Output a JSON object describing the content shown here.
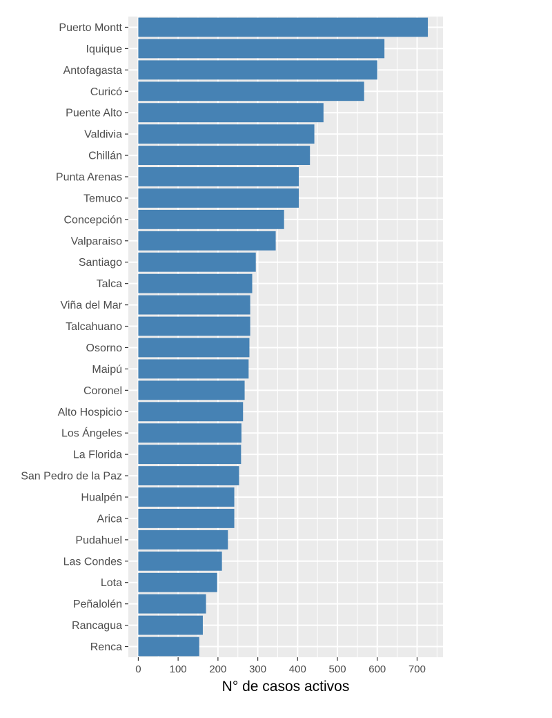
{
  "chart_data": {
    "type": "bar",
    "orientation": "horizontal",
    "categories": [
      "Puerto Montt",
      "Iquique",
      "Antofagasta",
      "Curicó",
      "Puente Alto",
      "Valdivia",
      "Chillán",
      "Punta Arenas",
      "Temuco",
      "Concepción",
      "Valparaiso",
      "Santiago",
      "Talca",
      "Viña del Mar",
      "Talcahuano",
      "Osorno",
      "Maipú",
      "Coronel",
      "Alto Hospicio",
      "Los Ángeles",
      "La Florida",
      "San Pedro de la Paz",
      "Hualpén",
      "Arica",
      "Pudahuel",
      "Las Condes",
      "Lota",
      "Peñalolén",
      "Rancagua",
      "Renca"
    ],
    "values": [
      727,
      618,
      600,
      567,
      465,
      442,
      431,
      403,
      403,
      366,
      345,
      295,
      286,
      281,
      281,
      279,
      277,
      267,
      263,
      259,
      258,
      253,
      241,
      241,
      225,
      210,
      198,
      170,
      162,
      153
    ],
    "xlabel": "N° de casos activos",
    "ylabel": "",
    "title": "",
    "xlim": [
      -25,
      765
    ],
    "xticks": [
      0,
      100,
      200,
      300,
      400,
      500,
      600,
      700
    ],
    "grid": true,
    "colors": {
      "bar": "#4682B4",
      "panel": "#EBEBEB",
      "grid": "#FFFFFF"
    }
  }
}
